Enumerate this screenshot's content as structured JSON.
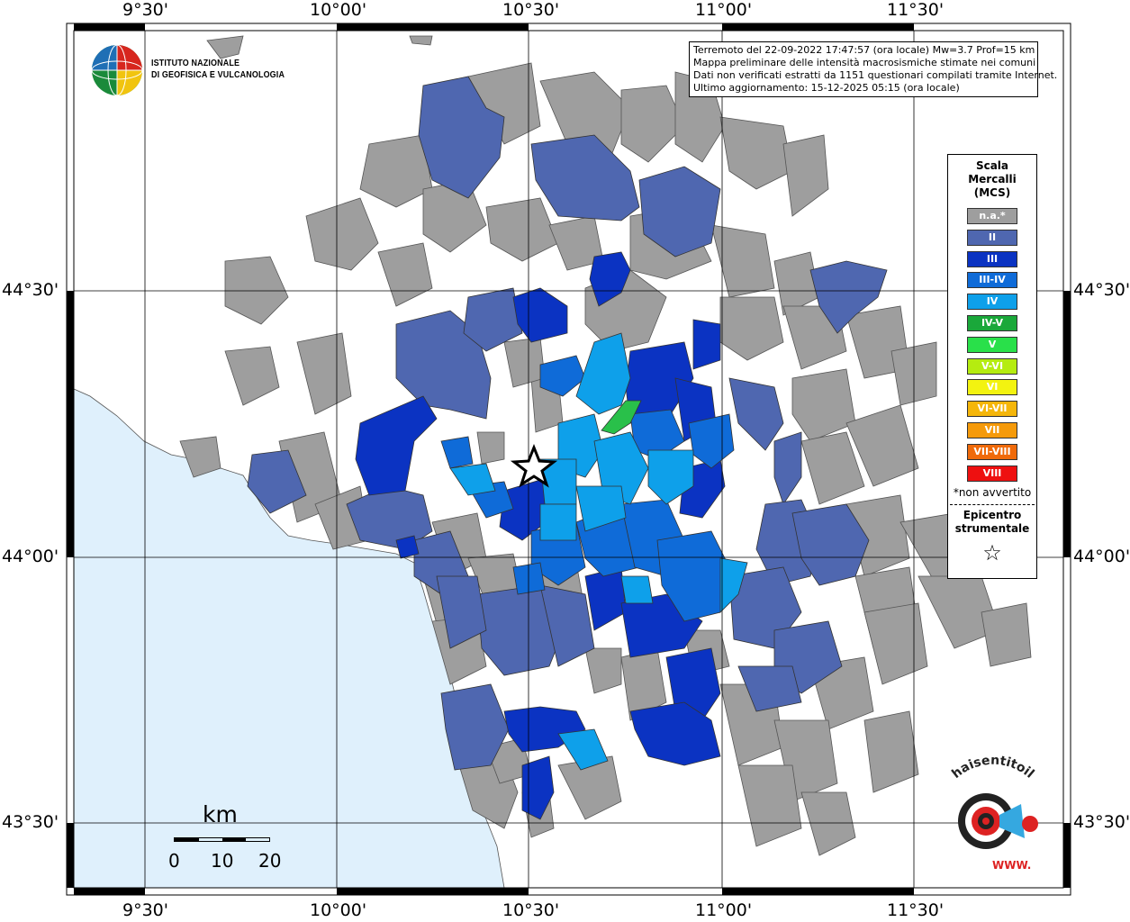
{
  "title_lines": [
    "Terremoto del 22-09-2022 17:47:57 (ora locale) Mw=3.7 Prof=15 km",
    "Mappa preliminare delle intensità macrosismiche stimate nei comuni",
    "Dati non verificati estratti da 1151 questionari compilati tramite Internet.",
    "Ultimo aggiornamento: 15-12-2025 05:15 (ora locale)"
  ],
  "logo": {
    "org_line1": "ISTITUTO NAZIONALE",
    "org_line2": "DI GEOFISICA E VULCANOLOGIA"
  },
  "axes": {
    "lon_ticks": [
      "9°30'",
      "10°00'",
      "10°30'",
      "11°00'",
      "11°30'"
    ],
    "lat_ticks": [
      "44°30'",
      "44°00'",
      "43°30'"
    ]
  },
  "legend": {
    "title_lines": [
      "Scala",
      "Mercalli",
      "(MCS)"
    ],
    "items": [
      {
        "label": "n.a.*",
        "color": "#9e9e9e"
      },
      {
        "label": "II",
        "color": "#4f67b0"
      },
      {
        "label": "III",
        "color": "#0b33c2"
      },
      {
        "label": "III-IV",
        "color": "#0f6bd8"
      },
      {
        "label": "IV",
        "color": "#0ea0ea"
      },
      {
        "label": "IV-V",
        "color": "#1aa83a"
      },
      {
        "label": "V",
        "color": "#29e04a"
      },
      {
        "label": "V-VI",
        "color": "#b5ec10"
      },
      {
        "label": "VI",
        "color": "#f3f310"
      },
      {
        "label": "VI-VII",
        "color": "#f5b60a"
      },
      {
        "label": "VII",
        "color": "#f59a0a"
      },
      {
        "label": "VII-VIII",
        "color": "#f06a0a"
      },
      {
        "label": "VIII",
        "color": "#ee1010"
      }
    ],
    "note": "*non avvertito",
    "epicenter_lines": [
      "Epicentro",
      "strumentale"
    ],
    "epicenter_symbol": "☆"
  },
  "scalebar": {
    "unit": "km",
    "labels": [
      "0",
      "10",
      "20"
    ]
  },
  "watermark": {
    "text": "haisentitoilterremoto.it",
    "site": "WWW."
  },
  "colors": {
    "sea": "#dff0fc",
    "frame": "#000000"
  }
}
